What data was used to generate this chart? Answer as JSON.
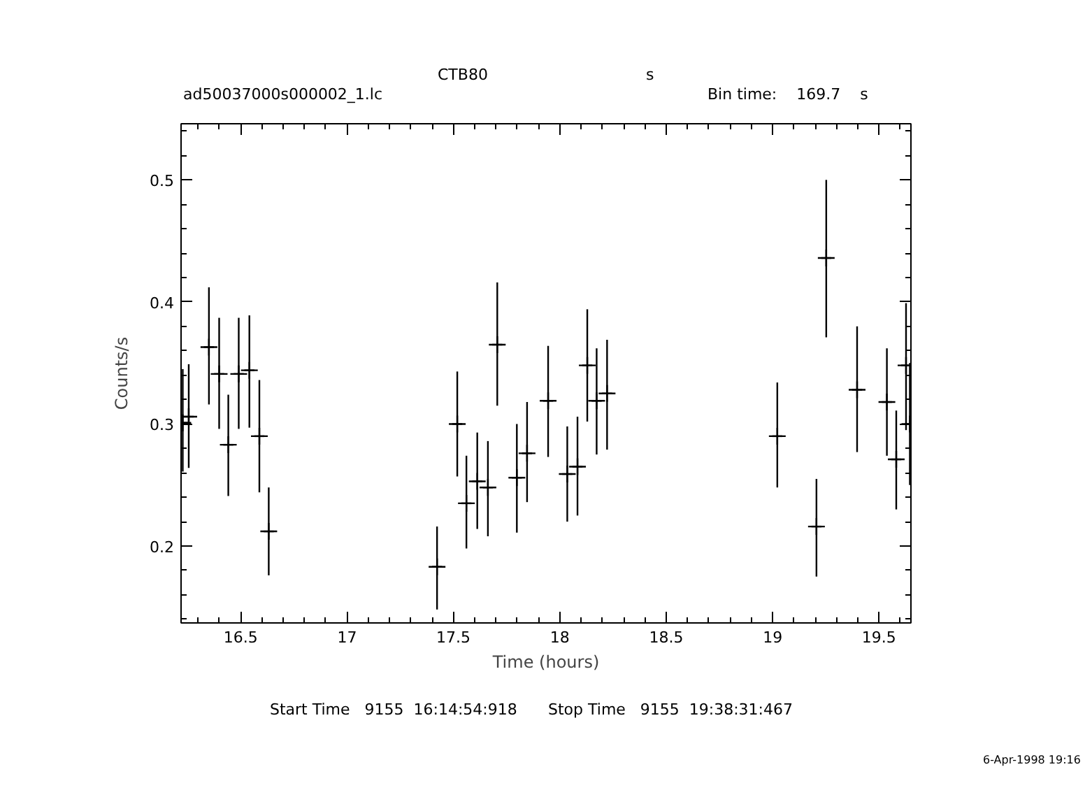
{
  "chart_data": {
    "type": "scatter",
    "title": "CTB80",
    "xlabel": "Time (hours)",
    "ylabel": "Counts/s",
    "annotations": [
      "s",
      "ad50037000s000002_1.lc",
      "Bin time:    169.7    s",
      "Start Time   9155  16:14:54:918",
      "Stop Time   9155  19:38:31:467",
      "6-Apr-1998 19:16"
    ],
    "xlim": [
      16.22,
      19.65
    ],
    "ylim": [
      0.137,
      0.546
    ],
    "xticks": [
      16.5,
      17,
      17.5,
      18,
      18.5,
      19,
      19.5
    ],
    "yticks": [
      0.2,
      0.3,
      0.4,
      0.5
    ],
    "grid": false,
    "marker": "cross",
    "x": [
      16.228,
      16.256,
      16.351,
      16.399,
      16.442,
      16.491,
      16.541,
      16.588,
      16.632,
      17.423,
      17.518,
      17.561,
      17.612,
      17.662,
      17.706,
      17.798,
      17.846,
      17.945,
      18.035,
      18.083,
      18.129,
      18.173,
      18.222,
      19.022,
      19.206,
      19.252,
      19.397,
      19.537,
      19.581,
      19.627,
      19.645
    ],
    "series": [
      {
        "color": "#000000",
        "values": [
          0.301,
          0.306,
          0.363,
          0.341,
          0.283,
          0.341,
          0.344,
          0.29,
          0.212,
          0.183,
          0.3,
          0.235,
          0.253,
          0.248,
          0.365,
          0.256,
          0.276,
          0.319,
          0.259,
          0.265,
          0.348,
          0.319,
          0.325,
          0.29,
          0.216,
          0.436,
          0.328,
          0.318,
          0.271,
          0.348,
          0.3
        ],
        "errors": [
          [
            0.261,
            0.345
          ],
          [
            0.264,
            0.349
          ],
          [
            0.316,
            0.412
          ],
          [
            0.296,
            0.387
          ],
          [
            0.241,
            0.324
          ],
          [
            0.296,
            0.387
          ],
          [
            0.297,
            0.389
          ],
          [
            0.244,
            0.336
          ],
          [
            0.176,
            0.248
          ],
          [
            0.148,
            0.216
          ],
          [
            0.257,
            0.343
          ],
          [
            0.198,
            0.274
          ],
          [
            0.214,
            0.293
          ],
          [
            0.208,
            0.286
          ],
          [
            0.315,
            0.416
          ],
          [
            0.211,
            0.3
          ],
          [
            0.236,
            0.318
          ],
          [
            0.273,
            0.364
          ],
          [
            0.22,
            0.298
          ],
          [
            0.225,
            0.306
          ],
          [
            0.302,
            0.394
          ],
          [
            0.275,
            0.362
          ],
          [
            0.279,
            0.369
          ],
          [
            0.248,
            0.334
          ],
          [
            0.175,
            0.255
          ],
          [
            0.371,
            0.5
          ],
          [
            0.277,
            0.38
          ],
          [
            0.274,
            0.362
          ],
          [
            0.23,
            0.311
          ],
          [
            0.295,
            0.399
          ],
          [
            0.25,
            0.35
          ]
        ],
        "xerrors": [
          0.0236,
          0.0236,
          0.0236,
          0.0236,
          0.0236,
          0.0236,
          0.0236,
          0.0236,
          0.0236,
          0.0236,
          0.0236,
          0.0236,
          0.0236,
          0.0236,
          0.0236,
          0.0236,
          0.0236,
          0.0236,
          0.0236,
          0.0236,
          0.0236,
          0.0236,
          0.0236,
          0.0236,
          0.0236,
          0.0236,
          0.0236,
          0.0236,
          0.0236,
          0.0236,
          0.0236
        ]
      }
    ]
  }
}
